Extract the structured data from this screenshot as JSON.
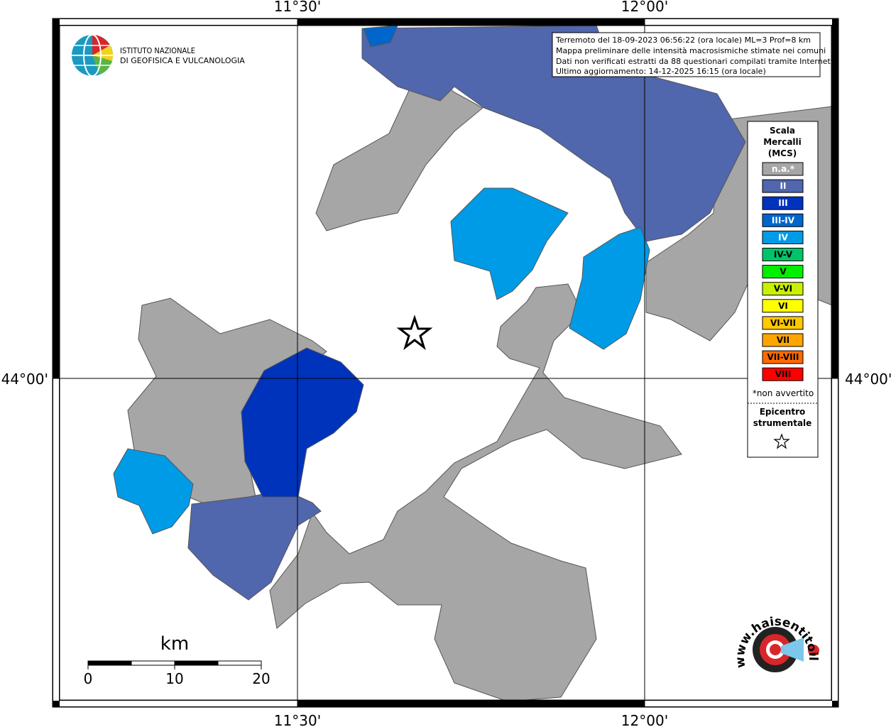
{
  "grid_labels": {
    "top": [
      "11°30'",
      "12°00'"
    ],
    "bottom": [
      "11°30'",
      "12°00'"
    ],
    "left": [
      "44°00'"
    ],
    "right": [
      "44°00'"
    ]
  },
  "info": [
    "Terremoto del 18-09-2023 06:56:22 (ora locale) ML=3 Prof=8 km",
    "Mappa preliminare delle intensità macrosismiche stimate nei comuni",
    "Dati non verificati estratti da 88 questionari compilati tramite Internet.",
    "Ultimo aggiornamento: 14-12-2025 16:15 (ora locale)"
  ],
  "institute": [
    "ISTITUTO NAZIONALE",
    "DI GEOFISICA E VULCANOLOGIA"
  ],
  "legend": {
    "title": [
      "Scala",
      "Mercalli",
      "(MCS)"
    ],
    "items": [
      {
        "label": "n.a.*",
        "color": "#a6a6a6"
      },
      {
        "label": "II",
        "color": "#5066ad"
      },
      {
        "label": "III",
        "color": "#0033bb"
      },
      {
        "label": "III-IV",
        "color": "#0066cc"
      },
      {
        "label": "IV",
        "color": "#009be6"
      },
      {
        "label": "IV-V",
        "color": "#00c46a"
      },
      {
        "label": "V",
        "color": "#00ee00"
      },
      {
        "label": "V-VI",
        "color": "#c8f000"
      },
      {
        "label": "VI",
        "color": "#ffff00"
      },
      {
        "label": "VI-VII",
        "color": "#ffc800"
      },
      {
        "label": "VII",
        "color": "#ffa500"
      },
      {
        "label": "VII-VIII",
        "color": "#ff6a00"
      },
      {
        "label": "VIII",
        "color": "#ff0000"
      }
    ],
    "note": "*non avvertito",
    "epicenter": [
      "Epicentro",
      "strumentale"
    ]
  },
  "scale": {
    "unit": "km",
    "ticks": [
      0,
      10,
      20
    ]
  },
  "site_logo": "www.haisentitoilterremoto.it"
}
